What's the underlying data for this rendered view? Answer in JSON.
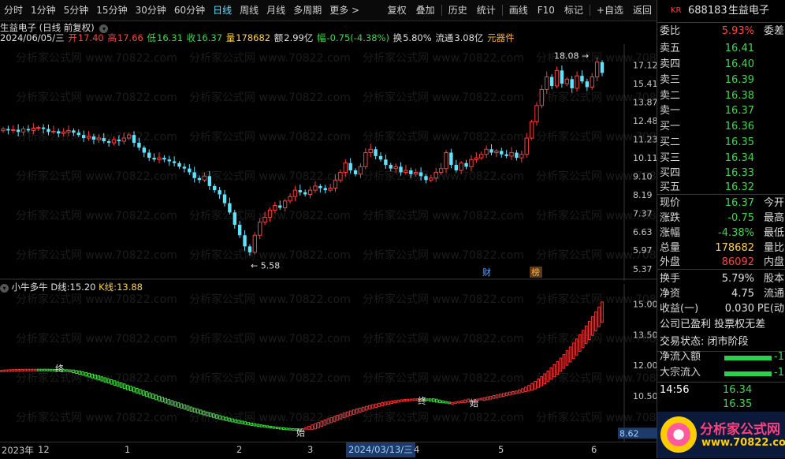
{
  "toolbar": {
    "periods": [
      "分时",
      "1分钟",
      "5分钟",
      "15分钟",
      "30分钟",
      "60分钟",
      "日线",
      "周线",
      "月线",
      "多周期",
      "更多 >"
    ],
    "active_period": "日线",
    "tools": [
      "复权",
      "叠加",
      "历史",
      "统计",
      "画线",
      "F10",
      "标记",
      "+自选",
      "返回"
    ]
  },
  "stock": {
    "name": "生益电子",
    "code": "688183",
    "kr_badge": "KR",
    "chart_label": "生益电子 (日线 前复权)",
    "date": "2024/06/05/三",
    "open_label": "开",
    "open": "17.40",
    "high_label": "高",
    "high": "17.66",
    "low_label": "低",
    "low": "16.31",
    "close_label": "收",
    "close": "16.37",
    "vol_label": "量",
    "vol": "178682",
    "amount_label": "额",
    "amount": "2.99亿",
    "chg_label": "幅",
    "chg": "-0.75(-4.38%)",
    "turnover_label": "换",
    "turnover": "5.80%",
    "float_label": "流通",
    "float": "3.08亿",
    "sector": "元器件"
  },
  "main_axis": {
    "labels": [
      "17.12",
      "15.41",
      "13.87",
      "12.48",
      "11.23",
      "10.11",
      "9.10",
      "8.19",
      "7.37",
      "6.63",
      "5.97",
      "5.37"
    ]
  },
  "annotations": {
    "high_mark": "18.08",
    "low_mark": "5.58",
    "fin_badge": "财",
    "list_badge": "榜"
  },
  "indicator": {
    "name": "小牛多牛",
    "d_label": "D线:",
    "d_value": "15.20",
    "k_label": "K线:",
    "k_value": "13.88",
    "axis": [
      "15.00",
      "13.50",
      "12.00",
      "10.50"
    ],
    "cursor_value": "8.62",
    "mark_end": "终",
    "mark_start": "始"
  },
  "xaxis": {
    "labels": [
      "2023年",
      "12",
      "1",
      "2",
      "3",
      "4",
      "5",
      "6"
    ],
    "cursor_date": "2024/03/13/三"
  },
  "chart_data": {
    "type": "candlestick",
    "title": "生益电子 (日线 前复权)",
    "ylim": [
      5.37,
      18.4
    ],
    "y_scale": "log",
    "closes": [
      11.9,
      11.8,
      11.85,
      11.7,
      11.9,
      11.8,
      11.95,
      12.0,
      11.9,
      11.7,
      11.75,
      11.6,
      11.7,
      11.8,
      11.65,
      11.5,
      11.3,
      11.4,
      11.2,
      11.3,
      11.1,
      11.0,
      11.2,
      11.1,
      11.3,
      11.5,
      11.0,
      10.7,
      10.4,
      10.1,
      10.0,
      10.1,
      10.0,
      9.9,
      9.8,
      9.6,
      9.5,
      9.3,
      9.0,
      8.9,
      9.1,
      8.6,
      8.4,
      8.2,
      7.8,
      7.4,
      6.9,
      6.5,
      6.1,
      5.9,
      6.5,
      7.0,
      7.2,
      7.5,
      7.7,
      7.6,
      7.9,
      8.1,
      8.4,
      8.3,
      8.2,
      8.4,
      8.6,
      8.5,
      8.4,
      8.5,
      8.9,
      9.3,
      9.8,
      9.4,
      9.2,
      9.6,
      10.4,
      10.6,
      10.2,
      10.0,
      9.7,
      9.5,
      9.6,
      9.3,
      9.4,
      9.2,
      9.3,
      9.1,
      8.9,
      9.0,
      9.3,
      9.5,
      10.4,
      9.7,
      9.4,
      9.8,
      9.6,
      10.0,
      10.1,
      10.3,
      10.6,
      10.4,
      10.5,
      10.3,
      10.2,
      10.4,
      10.1,
      10.3,
      11.3,
      12.4,
      13.6,
      14.9,
      16.0,
      15.2,
      16.6,
      15.4,
      15.8,
      15.0,
      16.1,
      15.6,
      15.1,
      16.0,
      17.4,
      16.37
    ],
    "high_label": "18.08",
    "low_label": "5.58"
  }
}
